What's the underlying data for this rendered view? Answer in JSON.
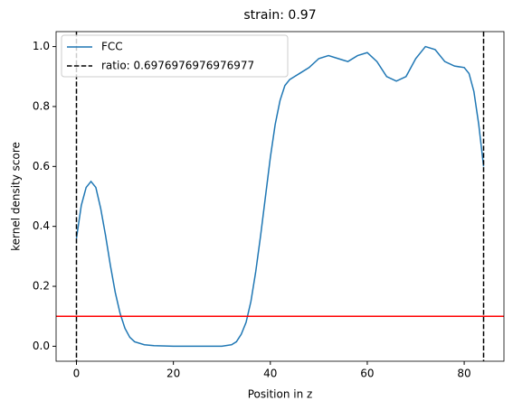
{
  "chart_data": {
    "type": "line",
    "title": "strain: 0.97",
    "xlabel": "Position in z",
    "ylabel": "kernel density score",
    "series": [
      {
        "name": "FCC",
        "color": "#1f77b4",
        "x": [
          0,
          1,
          2,
          3,
          4,
          5,
          6,
          7,
          8,
          9,
          10,
          11,
          12,
          14,
          16,
          20,
          25,
          30,
          32,
          33,
          34,
          35,
          36,
          37,
          38,
          39,
          40,
          41,
          42,
          43,
          44,
          45,
          46,
          48,
          50,
          52,
          54,
          56,
          58,
          60,
          62,
          64,
          66,
          68,
          70,
          72,
          74,
          76,
          78,
          80,
          81,
          82,
          83,
          84
        ],
        "values": [
          0.36,
          0.47,
          0.53,
          0.55,
          0.53,
          0.46,
          0.37,
          0.27,
          0.18,
          0.11,
          0.06,
          0.03,
          0.015,
          0.005,
          0.002,
          0.0,
          0.0,
          0.0,
          0.005,
          0.015,
          0.04,
          0.08,
          0.15,
          0.25,
          0.37,
          0.5,
          0.63,
          0.74,
          0.82,
          0.87,
          0.89,
          0.9,
          0.91,
          0.93,
          0.96,
          0.97,
          0.96,
          0.95,
          0.97,
          0.98,
          0.95,
          0.9,
          0.885,
          0.9,
          0.96,
          1.0,
          0.99,
          0.95,
          0.935,
          0.93,
          0.91,
          0.85,
          0.74,
          0.6
        ]
      }
    ],
    "vlines": {
      "name": "ratio: 0.6976976976976977",
      "color": "black",
      "x": [
        0,
        84
      ]
    },
    "hline": {
      "y": 0.1,
      "color": "red"
    },
    "xlim": [
      -4.2,
      88.2
    ],
    "ylim": [
      -0.05,
      1.05
    ],
    "xticks": [
      0,
      20,
      40,
      60,
      80
    ],
    "yticks": [
      {
        "value": 0,
        "label": "0.0"
      },
      0.2,
      0.4,
      0.6,
      0.8,
      {
        "value": 1,
        "label": "1.0"
      }
    ],
    "legend": "upper left"
  }
}
